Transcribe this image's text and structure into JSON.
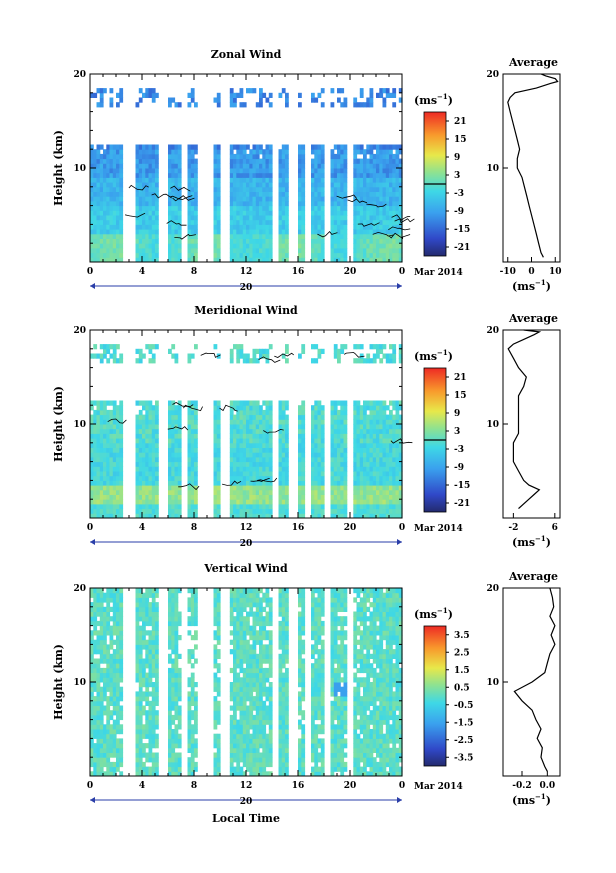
{
  "chart_data": [
    {
      "type": "heatmap",
      "title": "Zonal Wind",
      "ylabel": "Height (km)",
      "ylim": [
        0,
        20
      ],
      "yticks": [
        "10",
        "20"
      ],
      "xticks": [
        "0",
        "4",
        "8",
        "12",
        "16",
        "20",
        "0"
      ],
      "date_label": "20",
      "date_suffix": "Mar 2014",
      "colorbar": {
        "unit": "(ms",
        "ticks": [
          "21",
          "15",
          "9",
          "3",
          "-3",
          "-9",
          "-15",
          "-21"
        ],
        "range": [
          -24,
          24
        ]
      },
      "data_gaps_hours": [
        [
          2.6,
          3.4
        ],
        [
          5.3,
          6.0
        ],
        [
          7.0,
          7.4
        ],
        [
          8.2,
          9.5
        ],
        [
          10.0,
          10.8
        ],
        [
          14.0,
          14.6
        ],
        [
          15.3,
          16.0
        ],
        [
          16.4,
          17.0
        ],
        [
          17.9,
          18.4
        ],
        [
          19.8,
          20.2
        ]
      ],
      "contour_levels": [
        0
      ],
      "average_profile": {
        "title": "Average",
        "xlabel": "(ms",
        "xticks": [
          "-10",
          "0",
          "10"
        ],
        "xlim": [
          -12,
          12
        ],
        "yticks": [
          "10",
          "20"
        ],
        "ylim": [
          0,
          20
        ],
        "points": [
          [
            5,
            0.5
          ],
          [
            4,
            1
          ],
          [
            3,
            2
          ],
          [
            2,
            3
          ],
          [
            1,
            4
          ],
          [
            0,
            5
          ],
          [
            -1,
            6
          ],
          [
            -2,
            7
          ],
          [
            -3,
            8
          ],
          [
            -4,
            9
          ],
          [
            -6,
            10
          ],
          [
            -6,
            11
          ],
          [
            -5,
            12
          ],
          [
            -6,
            13
          ],
          [
            -7,
            14
          ],
          [
            -8,
            15
          ],
          [
            -9,
            16
          ],
          [
            -10,
            17
          ],
          [
            -9,
            17.5
          ],
          [
            -7,
            18
          ],
          [
            2,
            18.5
          ],
          [
            8,
            19
          ],
          [
            11,
            19.2
          ],
          [
            10,
            19.5
          ],
          [
            6,
            19.8
          ],
          [
            4,
            20
          ]
        ]
      }
    },
    {
      "type": "heatmap",
      "title": "Meridional Wind",
      "ylabel": "Height (km)",
      "ylim": [
        0,
        20
      ],
      "yticks": [
        "10",
        "20"
      ],
      "xticks": [
        "0",
        "4",
        "8",
        "12",
        "16",
        "20",
        "0"
      ],
      "date_label": "20",
      "date_suffix": "Mar 2014",
      "colorbar": {
        "unit": "(ms",
        "ticks": [
          "21",
          "15",
          "9",
          "3",
          "-3",
          "-9",
          "-15",
          "-21"
        ],
        "range": [
          -24,
          24
        ]
      },
      "data_gaps_hours": [
        [
          2.6,
          3.4
        ],
        [
          5.3,
          6.0
        ],
        [
          7.0,
          7.4
        ],
        [
          8.2,
          9.5
        ],
        [
          10.0,
          10.8
        ],
        [
          14.0,
          14.6
        ],
        [
          15.3,
          16.0
        ],
        [
          16.4,
          17.0
        ],
        [
          17.9,
          18.4
        ],
        [
          19.8,
          20.2
        ]
      ],
      "contour_levels": [
        0
      ],
      "average_profile": {
        "title": "Average",
        "xlabel": "(ms",
        "xticks": [
          "-2",
          "6"
        ],
        "xlim": [
          -4,
          7
        ],
        "yticks": [
          "10",
          "20"
        ],
        "ylim": [
          0,
          20
        ],
        "points": [
          [
            -1,
            1
          ],
          [
            1,
            2
          ],
          [
            2,
            2.5
          ],
          [
            3,
            3
          ],
          [
            1,
            3.5
          ],
          [
            0,
            4
          ],
          [
            -1,
            5
          ],
          [
            -2,
            6
          ],
          [
            -2,
            7
          ],
          [
            -2,
            8
          ],
          [
            -1,
            9
          ],
          [
            -1,
            10
          ],
          [
            -1,
            11
          ],
          [
            -1,
            12
          ],
          [
            -1,
            13
          ],
          [
            0,
            14
          ],
          [
            0.5,
            15
          ],
          [
            -1,
            16
          ],
          [
            -2,
            17
          ],
          [
            -3,
            18
          ],
          [
            -2,
            18.5
          ],
          [
            0,
            19
          ],
          [
            2,
            19.5
          ],
          [
            3,
            19.8
          ],
          [
            0,
            20
          ]
        ]
      }
    },
    {
      "type": "heatmap",
      "title": "Vertical Wind",
      "ylabel": "Height (km)",
      "xlabel": "Local Time",
      "ylim": [
        0,
        20
      ],
      "yticks": [
        "10",
        "20"
      ],
      "xticks": [
        "0",
        "4",
        "8",
        "12",
        "16",
        "20",
        "0"
      ],
      "date_label": "20",
      "date_suffix": "Mar 2014",
      "colorbar": {
        "unit": "(ms",
        "ticks": [
          "3.5",
          "2.5",
          "1.5",
          "0.5",
          "-0.5",
          "-1.5",
          "-2.5",
          "-3.5"
        ],
        "range": [
          -4,
          4
        ]
      },
      "data_gaps_hours": [
        [
          2.6,
          3.4
        ],
        [
          5.3,
          6.0
        ],
        [
          7.0,
          7.4
        ],
        [
          8.2,
          9.5
        ],
        [
          10.0,
          10.8
        ],
        [
          14.0,
          14.6
        ],
        [
          15.3,
          16.0
        ],
        [
          16.4,
          17.0
        ],
        [
          17.9,
          18.4
        ],
        [
          19.8,
          20.2
        ]
      ],
      "average_profile": {
        "title": "Average",
        "xlabel": "(ms",
        "xticks": [
          "-0.2",
          "0.0"
        ],
        "xlim": [
          -0.35,
          0.1
        ],
        "yticks": [
          "10",
          "20"
        ],
        "ylim": [
          0,
          20
        ],
        "points": [
          [
            0.0,
            0.5
          ],
          [
            -0.02,
            1
          ],
          [
            -0.05,
            2
          ],
          [
            -0.04,
            3
          ],
          [
            -0.08,
            4
          ],
          [
            -0.05,
            5
          ],
          [
            -0.09,
            6
          ],
          [
            -0.12,
            7
          ],
          [
            -0.2,
            8
          ],
          [
            -0.26,
            9
          ],
          [
            -0.12,
            10
          ],
          [
            -0.02,
            11
          ],
          [
            0.0,
            12
          ],
          [
            0.02,
            13
          ],
          [
            0.06,
            14
          ],
          [
            0.03,
            15
          ],
          [
            0.06,
            16
          ],
          [
            0.02,
            17
          ],
          [
            0.05,
            18
          ],
          [
            0.04,
            19
          ],
          [
            0.02,
            20
          ]
        ]
      }
    }
  ]
}
